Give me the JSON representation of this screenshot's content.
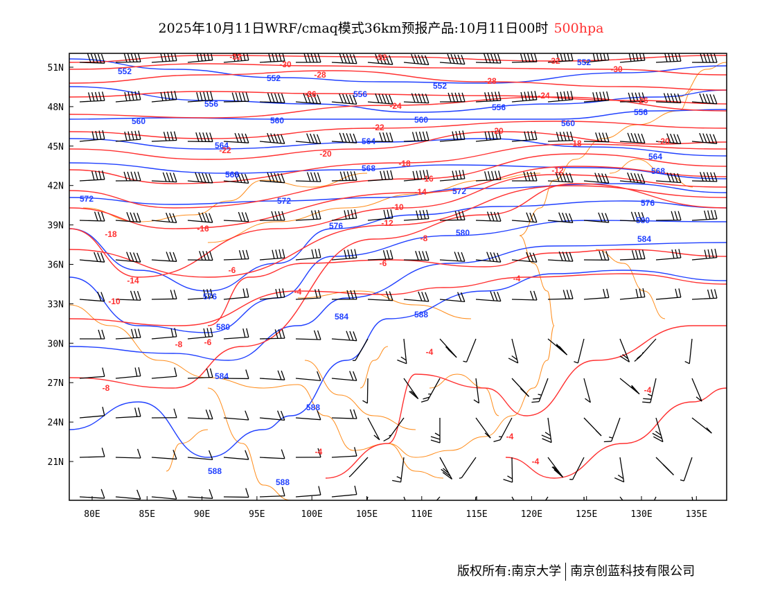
{
  "title": {
    "text": "2025年10月11日WRF/cmaq模式36km预报产品:10月11日00时",
    "level": "500hpa"
  },
  "footer": {
    "left": "版权所有:南京大学",
    "right": "南京创蓝科技有限公司"
  },
  "axes": {
    "lon_ticks": [
      "80E",
      "85E",
      "90E",
      "95E",
      "100E",
      "105E",
      "110E",
      "115E",
      "120E",
      "125E",
      "130E",
      "135E"
    ],
    "lat_ticks": [
      "51N",
      "48N",
      "45N",
      "42N",
      "39N",
      "36N",
      "33N",
      "30N",
      "27N",
      "24N",
      "21N"
    ]
  },
  "colors": {
    "height": "#2040ff",
    "temperature": "#ff3030",
    "boundary": "#ff8c1a",
    "wind": "#000000"
  },
  "height_contours": [
    {
      "value": "552",
      "labels": [
        "552",
        "552",
        "552",
        "552"
      ]
    },
    {
      "value": "556",
      "labels": [
        "556",
        "556",
        "556",
        "556"
      ]
    },
    {
      "value": "560",
      "labels": [
        "560",
        "560",
        "560",
        "560"
      ]
    },
    {
      "value": "564",
      "labels": [
        "564",
        "564",
        "564"
      ]
    },
    {
      "value": "568",
      "labels": [
        "568",
        "568",
        "568"
      ]
    },
    {
      "value": "572",
      "labels": [
        "572",
        "572",
        "572"
      ]
    },
    {
      "value": "576",
      "labels": [
        "576",
        "576",
        "576"
      ]
    },
    {
      "value": "580",
      "labels": [
        "580",
        "580",
        "580"
      ]
    },
    {
      "value": "584",
      "labels": [
        "584",
        "584",
        "584"
      ]
    },
    {
      "value": "588",
      "labels": [
        "588",
        "588",
        "588",
        "588"
      ]
    }
  ],
  "temperature_contours": [
    {
      "value": "-32",
      "labels": [
        "-32",
        "-32",
        "-32"
      ]
    },
    {
      "value": "-30",
      "labels": [
        "-30",
        "-30"
      ]
    },
    {
      "value": "-28",
      "labels": [
        "-28",
        "-28"
      ]
    },
    {
      "value": "-26",
      "labels": [
        "-26",
        "-26"
      ]
    },
    {
      "value": "-24",
      "labels": [
        "-24",
        "-24"
      ]
    },
    {
      "value": "-22",
      "labels": [
        "-22",
        "-22"
      ]
    },
    {
      "value": "-20",
      "labels": [
        "-20",
        "-20",
        "-20"
      ]
    },
    {
      "value": "-18",
      "labels": [
        "-18",
        "-18",
        "-18"
      ]
    },
    {
      "value": "-16",
      "labels": [
        "-16",
        "-16"
      ]
    },
    {
      "value": "-14",
      "labels": [
        "-14",
        "-14",
        "-14"
      ]
    },
    {
      "value": "-12",
      "labels": [
        "-12",
        "-12"
      ]
    },
    {
      "value": "-10",
      "labels": [
        "-10",
        "-10",
        "-10"
      ]
    },
    {
      "value": "-8",
      "labels": [
        "-8",
        "-8",
        "-8",
        "-8"
      ]
    },
    {
      "value": "-6",
      "labels": [
        "-6",
        "-6",
        "-6",
        "-6"
      ]
    },
    {
      "value": "-4",
      "labels": [
        "-4",
        "-4",
        "-4",
        "-4",
        "-4",
        "-4"
      ]
    }
  ]
}
